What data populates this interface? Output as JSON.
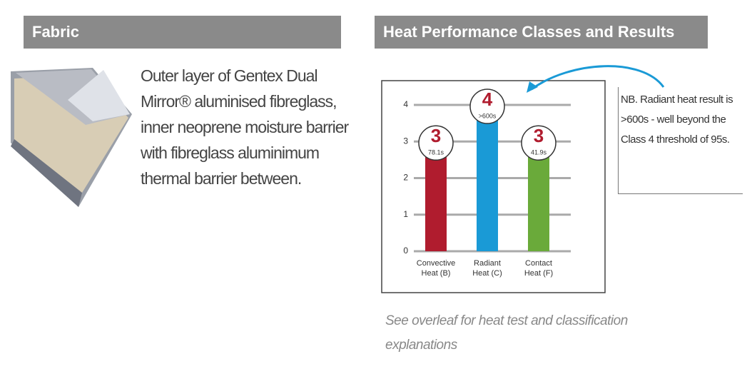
{
  "fabric": {
    "header": "Fabric",
    "text": "Outer layer of Gentex Dual Mirror® aluminised fibreglass, inner neoprene moisture barrier with fibreglass aluminimum thermal barrier between."
  },
  "heat": {
    "header": "Heat Performance Classes and Results",
    "note": "NB. Radiant heat result is >600s - well beyond the Class 4 threshold of 95s.",
    "caption": "See overleaf for heat test and classification explanations"
  },
  "chart_data": {
    "type": "bar",
    "categories": [
      "Convective\nHeat (B)",
      "Radiant\nHeat (C)",
      "Contact\nHeat (F)"
    ],
    "values": [
      3,
      4,
      3
    ],
    "times": [
      "78.1s",
      ">600s",
      "41.9s"
    ],
    "colors": [
      "#b01c2e",
      "#1a9ad6",
      "#6aaa3a"
    ],
    "ylim": [
      0,
      4
    ],
    "yticks": [
      0,
      1,
      2,
      3,
      4
    ],
    "grid": true
  }
}
